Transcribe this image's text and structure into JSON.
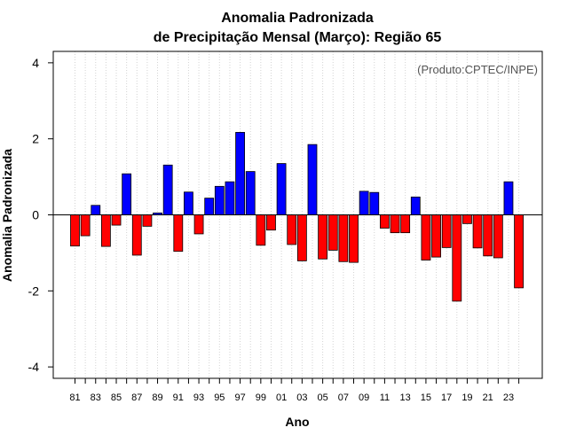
{
  "chart_data": {
    "type": "bar",
    "title_line1": "Anomalia Padronizada",
    "title_line2": "de Precipitação Mensal (Março): Região 65",
    "xlabel": "Ano",
    "ylabel": "Anomalia Padronizada",
    "annotation": "(Produto:CPTEC/INPE)",
    "ylim": [
      -4.3,
      4.3
    ],
    "yticks": [
      -4,
      -2,
      0,
      2,
      4
    ],
    "x": [
      1981,
      1982,
      1983,
      1984,
      1985,
      1986,
      1987,
      1988,
      1989,
      1990,
      1991,
      1992,
      1993,
      1994,
      1995,
      1996,
      1997,
      1998,
      1999,
      2000,
      2001,
      2002,
      2003,
      2004,
      2005,
      2006,
      2007,
      2008,
      2009,
      2010,
      2011,
      2012,
      2013,
      2014,
      2015,
      2016,
      2017,
      2018,
      2019,
      2020,
      2021,
      2022,
      2023,
      2024
    ],
    "xtick_labels": [
      "81",
      "83",
      "85",
      "87",
      "89",
      "91",
      "93",
      "95",
      "97",
      "99",
      "01",
      "03",
      "05",
      "07",
      "09",
      "11",
      "13",
      "15",
      "17",
      "19",
      "21",
      "23"
    ],
    "values": [
      -0.82,
      -0.55,
      0.25,
      -0.83,
      -0.27,
      1.08,
      -1.06,
      -0.3,
      0.05,
      1.31,
      -0.96,
      0.6,
      -0.5,
      0.44,
      0.75,
      0.87,
      2.17,
      1.14,
      -0.8,
      -0.4,
      1.35,
      -0.78,
      -1.21,
      1.85,
      -1.16,
      -0.93,
      -1.23,
      -1.25,
      0.62,
      0.59,
      -0.35,
      -0.47,
      -0.47,
      0.47,
      -1.19,
      -1.11,
      -0.86,
      -2.27,
      -0.23,
      -0.87,
      -1.08,
      -1.13,
      0.87,
      -1.92
    ],
    "grid": "vertical dotted",
    "colors": {
      "positive": "#0000ff",
      "negative": "#ff0000",
      "edge": "#000000",
      "grid": "#d3d3d3"
    }
  }
}
